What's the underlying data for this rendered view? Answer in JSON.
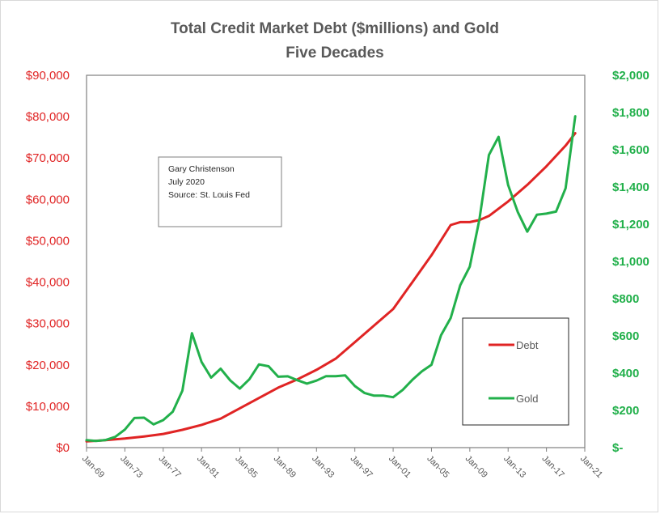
{
  "chart_data": {
    "type": "line",
    "title": "Total Credit Market Debt ($millions) and Gold",
    "subtitle": "Five Decades",
    "annotation": [
      "Gary Christenson",
      "July 2020",
      "Source: St. Louis Fed"
    ],
    "x_tick_labels": [
      "Jan-69",
      "Jan-73",
      "Jan-77",
      "Jan-81",
      "Jan-85",
      "Jan-89",
      "Jan-93",
      "Jan-97",
      "Jan-01",
      "Jan-05",
      "Jan-09",
      "Jan-13",
      "Jan-17",
      "Jan-21"
    ],
    "xlim": [
      1969,
      2021
    ],
    "y_left": {
      "lim": [
        0,
        90000
      ],
      "ticks": [
        0,
        10000,
        20000,
        30000,
        40000,
        50000,
        60000,
        70000,
        80000,
        90000
      ],
      "tick_labels": [
        "$0",
        "$10,000",
        "$20,000",
        "$30,000",
        "$40,000",
        "$50,000",
        "$60,000",
        "$70,000",
        "$80,000",
        "$90,000"
      ],
      "color": "#e02424"
    },
    "y_right": {
      "lim": [
        0,
        2000
      ],
      "ticks": [
        0,
        200,
        400,
        600,
        800,
        1000,
        1200,
        1400,
        1600,
        1800,
        2000
      ],
      "tick_labels": [
        "$-",
        "$200",
        "$400",
        "$600",
        "$800",
        "$1,000",
        "$1,200",
        "$1,400",
        "$1,600",
        "$1,800",
        "$2,000"
      ],
      "color": "#22b04b"
    },
    "legend_position": "bottom-right",
    "series": [
      {
        "name": "Debt",
        "axis": "left",
        "color": "#e02424",
        "x": [
          1969,
          1971,
          1973,
          1975,
          1977,
          1979,
          1981,
          1983,
          1985,
          1987,
          1989,
          1991,
          1993,
          1995,
          1997,
          1999,
          2001,
          2003,
          2005,
          2007,
          2008,
          2009,
          2010,
          2011,
          2013,
          2015,
          2017,
          2019,
          2020
        ],
        "y": [
          1500,
          1800,
          2200,
          2700,
          3300,
          4300,
          5500,
          7000,
          9500,
          12000,
          14500,
          16500,
          18800,
          21500,
          25500,
          29500,
          33500,
          40000,
          46500,
          53800,
          54500,
          54500,
          55000,
          56000,
          59500,
          63500,
          68000,
          73000,
          76000
        ]
      },
      {
        "name": "Gold",
        "axis": "right",
        "color": "#22b04b",
        "x": [
          1969,
          1970,
          1971,
          1972,
          1973,
          1974,
          1975,
          1976,
          1977,
          1978,
          1979,
          1980,
          1981,
          1982,
          1983,
          1984,
          1985,
          1986,
          1987,
          1988,
          1989,
          1990,
          1991,
          1992,
          1993,
          1994,
          1995,
          1996,
          1997,
          1998,
          1999,
          2000,
          2001,
          2002,
          2003,
          2004,
          2005,
          2006,
          2007,
          2008,
          2009,
          2010,
          2011,
          2012,
          2013,
          2014,
          2015,
          2016,
          2017,
          2018,
          2019,
          2020
        ],
        "y": [
          40,
          36,
          41,
          58,
          97,
          159,
          161,
          125,
          148,
          193,
          306,
          615,
          460,
          376,
          424,
          361,
          317,
          368,
          447,
          437,
          381,
          383,
          362,
          344,
          360,
          384,
          384,
          388,
          331,
          294,
          279,
          279,
          271,
          310,
          364,
          410,
          445,
          604,
          696,
          872,
          972,
          1225,
          1572,
          1669,
          1411,
          1266,
          1160,
          1251,
          1257,
          1268,
          1393,
          1780
        ]
      }
    ]
  }
}
